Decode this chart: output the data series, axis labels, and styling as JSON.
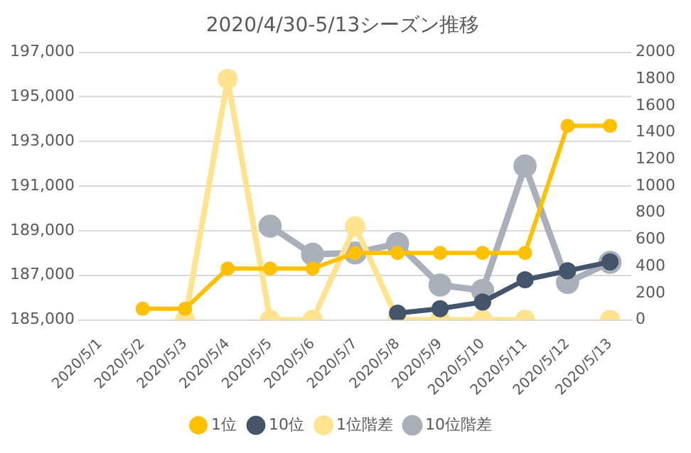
{
  "chart_data": {
    "type": "line",
    "title": "2020/4/30-5/13シーズン推移",
    "categories": [
      "2020/5/1",
      "2020/5/2",
      "2020/5/3",
      "2020/5/4",
      "2020/5/5",
      "2020/5/6",
      "2020/5/7",
      "2020/5/8",
      "2020/5/9",
      "2020/5/10",
      "2020/5/11",
      "2020/5/12",
      "2020/5/13"
    ],
    "series": [
      {
        "name": "1位",
        "color": "#ffc000",
        "values": [
          null,
          185500,
          185500,
          187300,
          187300,
          187300,
          188000,
          188000,
          188000,
          188000,
          188000,
          193700,
          193700
        ]
      },
      {
        "name": "10位",
        "color": "#44546a",
        "values": [
          null,
          null,
          null,
          null,
          null,
          null,
          null,
          185300,
          185500,
          185800,
          186800,
          187200,
          187600
        ]
      },
      {
        "name": "1位階差",
        "color": "#ffe38f",
        "axis": "y2",
        "values": [
          null,
          null,
          0,
          1800,
          0,
          0,
          700,
          0,
          0,
          0,
          0,
          null,
          0
        ]
      },
      {
        "name": "10位階差",
        "color": "#aab0b9",
        "axis": "y2",
        "values": [
          null,
          null,
          null,
          null,
          700,
          490,
          500,
          570,
          260,
          220,
          1150,
          280,
          430
        ]
      }
    ],
    "ylim": [
      185000,
      197000
    ],
    "yticks": [
      {
        "value": 185000,
        "label": "185,000"
      },
      {
        "value": 187000,
        "label": "187,000"
      },
      {
        "value": 189000,
        "label": "189,000"
      },
      {
        "value": 191000,
        "label": "191,000"
      },
      {
        "value": 193000,
        "label": "193,000"
      },
      {
        "value": 195000,
        "label": "195,000"
      },
      {
        "value": 197000,
        "label": "197,000"
      }
    ],
    "y2lim": [
      0,
      2000
    ],
    "y2ticks": [
      0,
      200,
      400,
      600,
      800,
      1000,
      1200,
      1400,
      1600,
      1800,
      2000
    ],
    "grid": "y",
    "legend": "bottom",
    "marker": "circle",
    "line_style": "solid"
  }
}
